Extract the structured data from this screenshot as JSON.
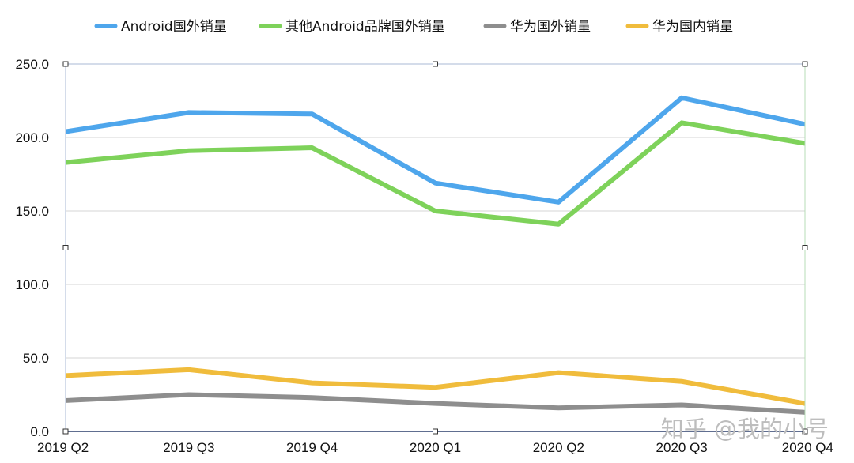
{
  "chart_data": {
    "type": "line",
    "categories": [
      "2019 Q2",
      "2019 Q3",
      "2019 Q4",
      "2020 Q1",
      "2020 Q2",
      "2020 Q3",
      "2020 Q4"
    ],
    "y_ticks": [
      "0.0",
      "50.0",
      "100.0",
      "150.0",
      "200.0",
      "250.0"
    ],
    "ylim": [
      0,
      250
    ],
    "grid": true,
    "legend_position": "top",
    "series": [
      {
        "name": "Android国外销量",
        "color": "#4ea6ec",
        "values": [
          204,
          217,
          216,
          169,
          156,
          227,
          209
        ]
      },
      {
        "name": "其他Android品牌国外销量",
        "color": "#7ed25a",
        "values": [
          183,
          191,
          193,
          150,
          141,
          210,
          196
        ]
      },
      {
        "name": "华为国外销量",
        "color": "#8e8e8e",
        "values": [
          21,
          25,
          23,
          19,
          16,
          18,
          13
        ]
      },
      {
        "name": "华为国内销量",
        "color": "#f0bc3c",
        "values": [
          38,
          42,
          33,
          30,
          40,
          34,
          19
        ]
      }
    ]
  },
  "watermark": "知乎 @我的小号"
}
